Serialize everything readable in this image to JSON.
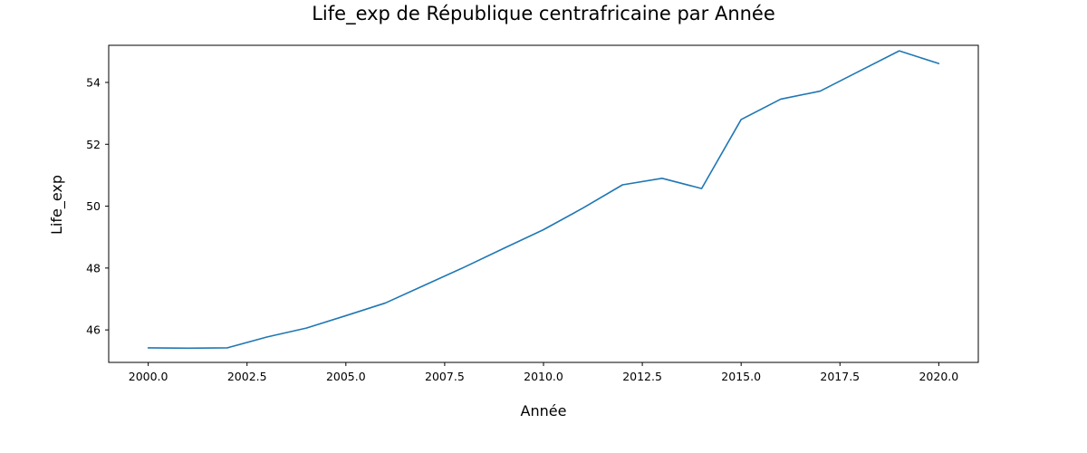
{
  "chart_data": {
    "type": "line",
    "title": "Life_exp de République centrafricaine par Année",
    "xlabel": "Année",
    "ylabel": "Life_exp",
    "xlim": [
      1999.0,
      2021.0
    ],
    "ylim": [
      44.95,
      55.2
    ],
    "xticks": [
      2000.0,
      2002.5,
      2005.0,
      2007.5,
      2010.0,
      2012.5,
      2015.0,
      2017.5,
      2020.0
    ],
    "xtick_labels": [
      "2000.0",
      "2002.5",
      "2005.0",
      "2007.5",
      "2010.0",
      "2012.5",
      "2015.0",
      "2017.5",
      "2020.0"
    ],
    "yticks": [
      46,
      48,
      50,
      52,
      54
    ],
    "ytick_labels": [
      "46",
      "48",
      "50",
      "52",
      "54"
    ],
    "grid": false,
    "series": [
      {
        "color": "#1f77b4",
        "x": [
          2000,
          2001,
          2002,
          2003,
          2004,
          2005,
          2006,
          2007,
          2008,
          2009,
          2010,
          2011,
          2012,
          2013,
          2014,
          2015,
          2016,
          2017,
          2018,
          2019,
          2020
        ],
        "y": [
          45.42,
          45.41,
          45.42,
          45.77,
          46.06,
          46.46,
          46.87,
          47.45,
          48.03,
          48.64,
          49.24,
          49.94,
          50.69,
          50.9,
          50.57,
          52.8,
          53.46,
          53.72,
          54.37,
          55.02,
          54.61
        ]
      }
    ]
  }
}
